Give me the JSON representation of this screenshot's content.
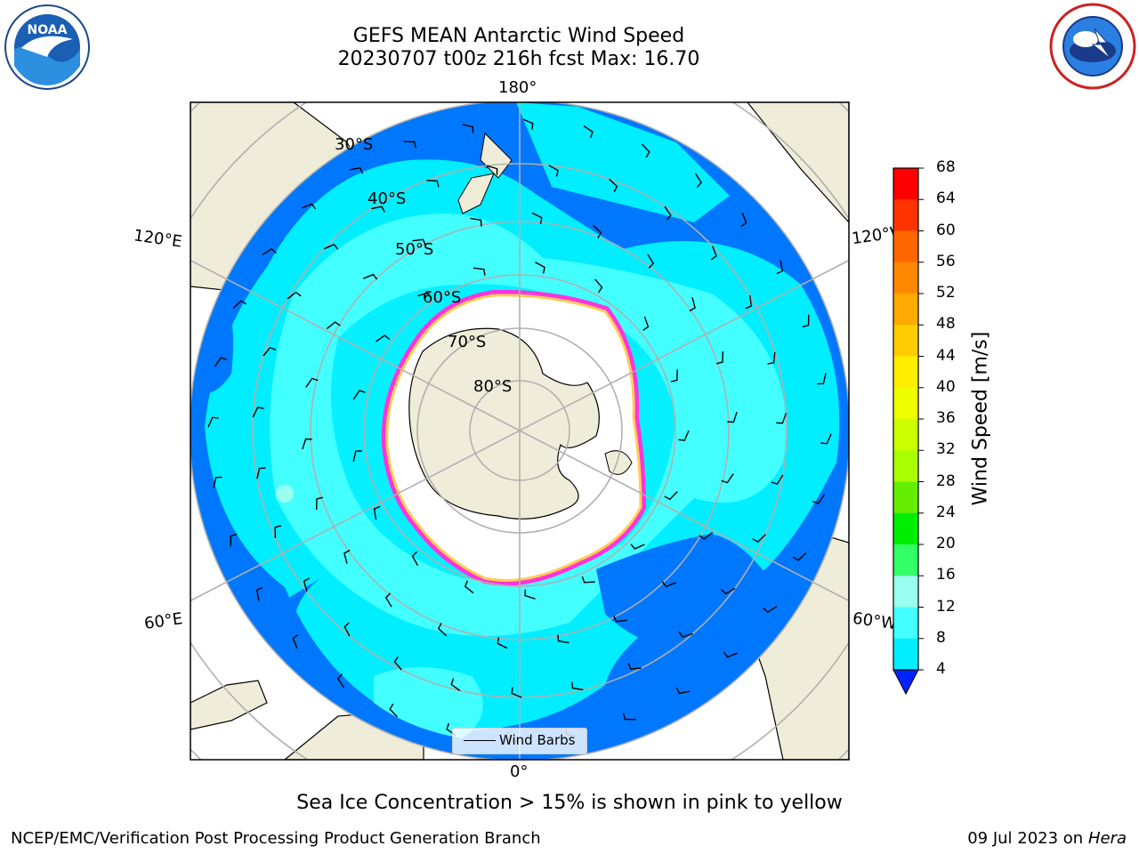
{
  "header": {
    "title_line1": "GEFS MEAN Antarctic Wind Speed",
    "title_line2": "20230707 t00z 216h fcst   Max: 16.70"
  },
  "logos": {
    "left": {
      "text": "NOAA",
      "icon": "noaa-logo-icon"
    },
    "right": {
      "icon": "nws-logo-icon"
    }
  },
  "map": {
    "projection": "south-polar-stereographic",
    "longitude_labels": {
      "top": "180°",
      "bottom": "0°",
      "upper_left": "120°E",
      "upper_right": "120°W",
      "lower_left": "60°E",
      "lower_right": "60°W"
    },
    "latitude_labels": [
      "30°S",
      "40°S",
      "50°S",
      "60°S",
      "70°S",
      "80°S"
    ],
    "legend": {
      "label": "Wind Barbs"
    },
    "colors": {
      "land": "#efedd9",
      "ice_white": "#ffffff",
      "sea_ice_pink": "#ff33dd",
      "sea_ice_yellow": "#ffcc55"
    }
  },
  "colorbar": {
    "label": "Wind Speed [m/s]",
    "ticks": [
      "68",
      "64",
      "60",
      "56",
      "52",
      "48",
      "44",
      "40",
      "36",
      "32",
      "28",
      "24",
      "20",
      "16",
      "12",
      "8",
      "4"
    ],
    "colors_top_to_bottom": [
      "#ff0000",
      "#ff3300",
      "#ff6600",
      "#ff8800",
      "#ffaa00",
      "#ffcc00",
      "#ffee00",
      "#eeff00",
      "#ccff00",
      "#aaff00",
      "#66ee00",
      "#00ee00",
      "#33ff66",
      "#99ffee",
      "#44ffff",
      "#00eeff"
    ],
    "extend_low_color": "#0022ff",
    "lowest_band_color": "#0077ff"
  },
  "footer": {
    "caption": "Sea Ice Concentration > 15% is shown in pink to yellow",
    "credit": "NCEP/EMC/Verification Post Processing Product Generation Branch",
    "date": "09 Jul 2023 on ",
    "machine": "Hera"
  }
}
